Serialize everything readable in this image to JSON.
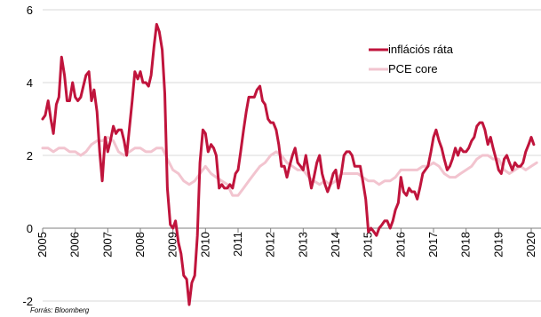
{
  "chart_data": {
    "type": "line",
    "title": "",
    "xlabel": "",
    "ylabel": "",
    "x_ticks": [
      "2005",
      "2006",
      "2007",
      "2008",
      "2009",
      "2010",
      "2011",
      "2012",
      "2013",
      "2014",
      "2015",
      "2016",
      "2017",
      "2018",
      "2019",
      "2020"
    ],
    "y_ticks": [
      "-2",
      "0",
      "2",
      "4",
      "6"
    ],
    "xlim": [
      2005.0,
      2020.3
    ],
    "ylim": [
      -2,
      6
    ],
    "grid": "horizontal",
    "legend_position": "top-right",
    "series": [
      {
        "name": "inflációs ráta",
        "color": "#c0143c",
        "points": [
          [
            2005.0,
            3.0
          ],
          [
            2005.08,
            3.1
          ],
          [
            2005.17,
            3.5
          ],
          [
            2005.25,
            3.0
          ],
          [
            2005.33,
            2.6
          ],
          [
            2005.42,
            3.4
          ],
          [
            2005.5,
            3.6
          ],
          [
            2005.58,
            4.7
          ],
          [
            2005.67,
            4.2
          ],
          [
            2005.75,
            3.5
          ],
          [
            2005.83,
            3.5
          ],
          [
            2005.92,
            4.0
          ],
          [
            2006.0,
            3.6
          ],
          [
            2006.08,
            3.5
          ],
          [
            2006.17,
            3.6
          ],
          [
            2006.25,
            3.9
          ],
          [
            2006.33,
            4.2
          ],
          [
            2006.42,
            4.3
          ],
          [
            2006.5,
            3.5
          ],
          [
            2006.58,
            3.8
          ],
          [
            2006.67,
            3.2
          ],
          [
            2006.75,
            2.1
          ],
          [
            2006.83,
            1.3
          ],
          [
            2006.92,
            2.5
          ],
          [
            2007.0,
            2.1
          ],
          [
            2007.08,
            2.4
          ],
          [
            2007.17,
            2.8
          ],
          [
            2007.25,
            2.6
          ],
          [
            2007.33,
            2.7
          ],
          [
            2007.42,
            2.7
          ],
          [
            2007.5,
            2.4
          ],
          [
            2007.58,
            2.0
          ],
          [
            2007.67,
            2.8
          ],
          [
            2007.75,
            3.5
          ],
          [
            2007.83,
            4.3
          ],
          [
            2007.92,
            4.1
          ],
          [
            2008.0,
            4.3
          ],
          [
            2008.08,
            4.0
          ],
          [
            2008.17,
            4.0
          ],
          [
            2008.25,
            3.9
          ],
          [
            2008.33,
            4.2
          ],
          [
            2008.42,
            5.0
          ],
          [
            2008.5,
            5.6
          ],
          [
            2008.58,
            5.4
          ],
          [
            2008.67,
            4.9
          ],
          [
            2008.75,
            3.7
          ],
          [
            2008.83,
            1.1
          ],
          [
            2008.92,
            0.1
          ],
          [
            2009.0,
            0.0
          ],
          [
            2009.08,
            0.2
          ],
          [
            2009.17,
            -0.4
          ],
          [
            2009.25,
            -0.7
          ],
          [
            2009.33,
            -1.3
          ],
          [
            2009.42,
            -1.4
          ],
          [
            2009.5,
            -2.1
          ],
          [
            2009.58,
            -1.5
          ],
          [
            2009.67,
            -1.3
          ],
          [
            2009.75,
            -0.2
          ],
          [
            2009.83,
            1.8
          ],
          [
            2009.92,
            2.7
          ],
          [
            2010.0,
            2.6
          ],
          [
            2010.08,
            2.1
          ],
          [
            2010.17,
            2.3
          ],
          [
            2010.25,
            2.2
          ],
          [
            2010.33,
            2.0
          ],
          [
            2010.42,
            1.1
          ],
          [
            2010.5,
            1.2
          ],
          [
            2010.58,
            1.1
          ],
          [
            2010.67,
            1.1
          ],
          [
            2010.75,
            1.2
          ],
          [
            2010.83,
            1.1
          ],
          [
            2010.92,
            1.5
          ],
          [
            2011.0,
            1.6
          ],
          [
            2011.08,
            2.1
          ],
          [
            2011.17,
            2.7
          ],
          [
            2011.25,
            3.2
          ],
          [
            2011.33,
            3.6
          ],
          [
            2011.42,
            3.6
          ],
          [
            2011.5,
            3.6
          ],
          [
            2011.58,
            3.8
          ],
          [
            2011.67,
            3.9
          ],
          [
            2011.75,
            3.5
          ],
          [
            2011.83,
            3.4
          ],
          [
            2011.92,
            3.0
          ],
          [
            2012.0,
            2.9
          ],
          [
            2012.08,
            2.9
          ],
          [
            2012.17,
            2.7
          ],
          [
            2012.25,
            2.3
          ],
          [
            2012.33,
            1.7
          ],
          [
            2012.42,
            1.7
          ],
          [
            2012.5,
            1.4
          ],
          [
            2012.58,
            1.7
          ],
          [
            2012.67,
            2.0
          ],
          [
            2012.75,
            2.2
          ],
          [
            2012.83,
            1.8
          ],
          [
            2012.92,
            1.7
          ],
          [
            2013.0,
            1.6
          ],
          [
            2013.08,
            2.0
          ],
          [
            2013.17,
            1.5
          ],
          [
            2013.25,
            1.1
          ],
          [
            2013.33,
            1.4
          ],
          [
            2013.42,
            1.8
          ],
          [
            2013.5,
            2.0
          ],
          [
            2013.58,
            1.5
          ],
          [
            2013.67,
            1.2
          ],
          [
            2013.75,
            1.0
          ],
          [
            2013.83,
            1.2
          ],
          [
            2013.92,
            1.5
          ],
          [
            2014.0,
            1.6
          ],
          [
            2014.08,
            1.1
          ],
          [
            2014.17,
            1.5
          ],
          [
            2014.25,
            2.0
          ],
          [
            2014.33,
            2.1
          ],
          [
            2014.42,
            2.1
          ],
          [
            2014.5,
            2.0
          ],
          [
            2014.58,
            1.7
          ],
          [
            2014.67,
            1.7
          ],
          [
            2014.75,
            1.7
          ],
          [
            2014.83,
            1.3
          ],
          [
            2014.92,
            0.8
          ],
          [
            2015.0,
            -0.1
          ],
          [
            2015.08,
            0.0
          ],
          [
            2015.17,
            -0.1
          ],
          [
            2015.25,
            -0.2
          ],
          [
            2015.33,
            0.0
          ],
          [
            2015.42,
            0.1
          ],
          [
            2015.5,
            0.2
          ],
          [
            2015.58,
            0.2
          ],
          [
            2015.67,
            0.0
          ],
          [
            2015.75,
            0.2
          ],
          [
            2015.83,
            0.5
          ],
          [
            2015.92,
            0.7
          ],
          [
            2016.0,
            1.4
          ],
          [
            2016.08,
            1.0
          ],
          [
            2016.17,
            0.9
          ],
          [
            2016.25,
            1.1
          ],
          [
            2016.33,
            1.0
          ],
          [
            2016.42,
            1.0
          ],
          [
            2016.5,
            0.8
          ],
          [
            2016.58,
            1.1
          ],
          [
            2016.67,
            1.5
          ],
          [
            2016.75,
            1.6
          ],
          [
            2016.83,
            1.7
          ],
          [
            2016.92,
            2.1
          ],
          [
            2017.0,
            2.5
          ],
          [
            2017.08,
            2.7
          ],
          [
            2017.17,
            2.4
          ],
          [
            2017.25,
            2.2
          ],
          [
            2017.33,
            1.9
          ],
          [
            2017.42,
            1.6
          ],
          [
            2017.5,
            1.7
          ],
          [
            2017.58,
            1.9
          ],
          [
            2017.67,
            2.2
          ],
          [
            2017.75,
            2.0
          ],
          [
            2017.83,
            2.2
          ],
          [
            2017.92,
            2.1
          ],
          [
            2018.0,
            2.1
          ],
          [
            2018.08,
            2.2
          ],
          [
            2018.17,
            2.4
          ],
          [
            2018.25,
            2.5
          ],
          [
            2018.33,
            2.8
          ],
          [
            2018.42,
            2.9
          ],
          [
            2018.5,
            2.9
          ],
          [
            2018.58,
            2.7
          ],
          [
            2018.67,
            2.3
          ],
          [
            2018.75,
            2.5
          ],
          [
            2018.83,
            2.2
          ],
          [
            2018.92,
            1.9
          ],
          [
            2019.0,
            1.6
          ],
          [
            2019.08,
            1.5
          ],
          [
            2019.17,
            1.9
          ],
          [
            2019.25,
            2.0
          ],
          [
            2019.33,
            1.8
          ],
          [
            2019.42,
            1.6
          ],
          [
            2019.5,
            1.8
          ],
          [
            2019.58,
            1.7
          ],
          [
            2019.67,
            1.7
          ],
          [
            2019.75,
            1.8
          ],
          [
            2019.83,
            2.1
          ],
          [
            2019.92,
            2.3
          ],
          [
            2020.0,
            2.5
          ],
          [
            2020.08,
            2.3
          ]
        ]
      },
      {
        "name": "PCE core",
        "color": "#f2c4cf",
        "points": [
          [
            2005.0,
            2.2
          ],
          [
            2005.17,
            2.2
          ],
          [
            2005.33,
            2.1
          ],
          [
            2005.5,
            2.2
          ],
          [
            2005.67,
            2.2
          ],
          [
            2005.83,
            2.1
          ],
          [
            2006.0,
            2.1
          ],
          [
            2006.17,
            2.0
          ],
          [
            2006.33,
            2.1
          ],
          [
            2006.5,
            2.3
          ],
          [
            2006.67,
            2.4
          ],
          [
            2006.83,
            2.4
          ],
          [
            2007.0,
            2.5
          ],
          [
            2007.17,
            2.4
          ],
          [
            2007.33,
            2.1
          ],
          [
            2007.5,
            2.0
          ],
          [
            2007.67,
            2.1
          ],
          [
            2007.83,
            2.2
          ],
          [
            2008.0,
            2.2
          ],
          [
            2008.17,
            2.1
          ],
          [
            2008.33,
            2.1
          ],
          [
            2008.5,
            2.2
          ],
          [
            2008.67,
            2.2
          ],
          [
            2008.83,
            1.9
          ],
          [
            2009.0,
            1.6
          ],
          [
            2009.17,
            1.5
          ],
          [
            2009.33,
            1.3
          ],
          [
            2009.5,
            1.2
          ],
          [
            2009.67,
            1.3
          ],
          [
            2009.83,
            1.5
          ],
          [
            2010.0,
            1.7
          ],
          [
            2010.17,
            1.5
          ],
          [
            2010.33,
            1.4
          ],
          [
            2010.5,
            1.3
          ],
          [
            2010.67,
            1.2
          ],
          [
            2010.83,
            0.9
          ],
          [
            2011.0,
            0.9
          ],
          [
            2011.17,
            1.1
          ],
          [
            2011.33,
            1.3
          ],
          [
            2011.5,
            1.5
          ],
          [
            2011.67,
            1.7
          ],
          [
            2011.83,
            1.8
          ],
          [
            2012.0,
            2.0
          ],
          [
            2012.17,
            2.1
          ],
          [
            2012.33,
            2.0
          ],
          [
            2012.5,
            1.8
          ],
          [
            2012.67,
            1.7
          ],
          [
            2012.83,
            1.6
          ],
          [
            2013.0,
            1.6
          ],
          [
            2013.17,
            1.4
          ],
          [
            2013.33,
            1.3
          ],
          [
            2013.5,
            1.2
          ],
          [
            2013.67,
            1.3
          ],
          [
            2013.83,
            1.2
          ],
          [
            2014.0,
            1.3
          ],
          [
            2014.17,
            1.5
          ],
          [
            2014.33,
            1.5
          ],
          [
            2014.5,
            1.5
          ],
          [
            2014.67,
            1.5
          ],
          [
            2014.83,
            1.4
          ],
          [
            2015.0,
            1.3
          ],
          [
            2015.17,
            1.3
          ],
          [
            2015.33,
            1.2
          ],
          [
            2015.5,
            1.3
          ],
          [
            2015.67,
            1.3
          ],
          [
            2015.83,
            1.4
          ],
          [
            2016.0,
            1.6
          ],
          [
            2016.17,
            1.6
          ],
          [
            2016.33,
            1.6
          ],
          [
            2016.5,
            1.6
          ],
          [
            2016.67,
            1.7
          ],
          [
            2016.83,
            1.7
          ],
          [
            2017.0,
            1.8
          ],
          [
            2017.17,
            1.7
          ],
          [
            2017.33,
            1.5
          ],
          [
            2017.5,
            1.4
          ],
          [
            2017.67,
            1.4
          ],
          [
            2017.83,
            1.5
          ],
          [
            2018.0,
            1.6
          ],
          [
            2018.17,
            1.7
          ],
          [
            2018.33,
            1.9
          ],
          [
            2018.5,
            2.0
          ],
          [
            2018.67,
            2.0
          ],
          [
            2018.83,
            1.9
          ],
          [
            2019.0,
            1.9
          ],
          [
            2019.17,
            1.6
          ],
          [
            2019.33,
            1.5
          ],
          [
            2019.5,
            1.6
          ],
          [
            2019.67,
            1.7
          ],
          [
            2019.83,
            1.6
          ],
          [
            2020.0,
            1.7
          ],
          [
            2020.17,
            1.8
          ]
        ]
      }
    ]
  },
  "source": "Forrás: Bloomberg"
}
